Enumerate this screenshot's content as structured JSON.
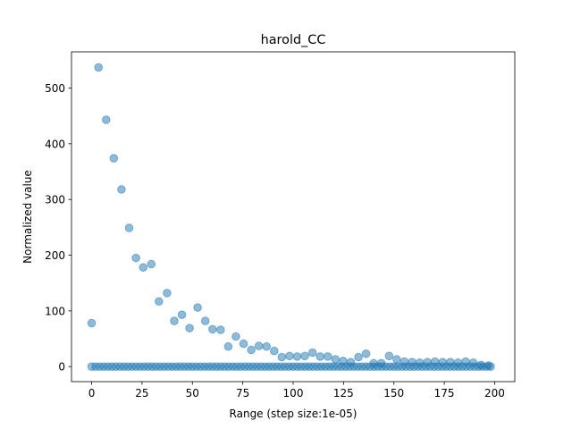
{
  "chart_data": {
    "type": "scatter",
    "title": "harold_CC",
    "xlabel": "Range (step size:1e-05)",
    "ylabel": "Normalized value",
    "xlim": [
      -10,
      210
    ],
    "ylim": [
      -27,
      565
    ],
    "xticks": [
      0,
      25,
      50,
      75,
      100,
      125,
      150,
      175,
      200
    ],
    "yticks": [
      0,
      100,
      200,
      300,
      400,
      500
    ],
    "grid": false,
    "color": "#1f77b4",
    "series": [
      {
        "x": [
          0,
          3.4,
          7.2,
          11,
          14.8,
          18.6,
          22,
          25.6,
          29.6,
          33.4,
          37.4,
          41,
          44.8,
          48.6,
          52.6,
          56.4,
          60,
          64,
          67.8,
          71.6,
          75.4,
          79.2,
          83,
          86.8,
          90.6,
          94.4,
          98.2,
          102,
          105.8,
          109.6,
          113.4,
          117.2,
          121,
          124.8,
          128.6,
          132.4,
          136.2,
          140,
          143.8,
          147.6,
          151.4,
          155.2,
          159,
          162.8,
          166.6,
          170.4,
          174.2,
          178,
          181.8,
          185.6,
          189.4,
          193.2,
          197
        ],
        "y": [
          78,
          537,
          443,
          374,
          318,
          249,
          195,
          178,
          184,
          117,
          132,
          82,
          93,
          69,
          106,
          82,
          67,
          66,
          36,
          54,
          41,
          30,
          37,
          36,
          28,
          17,
          19,
          18,
          19,
          25,
          18,
          18,
          13,
          10,
          8,
          17,
          23,
          6,
          6,
          19,
          13,
          9,
          8,
          7,
          8,
          9,
          8,
          8,
          7,
          9,
          7,
          3,
          2
        ]
      },
      {
        "x": [
          0,
          2,
          4,
          6,
          8,
          10,
          12,
          14,
          16,
          18,
          20,
          22,
          24,
          26,
          28,
          30,
          32,
          34,
          36,
          38,
          40,
          42,
          44,
          46,
          48,
          50,
          52,
          54,
          56,
          58,
          60,
          62,
          64,
          66,
          68,
          70,
          72,
          74,
          76,
          78,
          80,
          82,
          84,
          86,
          88,
          90,
          92,
          94,
          96,
          98,
          100,
          102,
          104,
          106,
          108,
          110,
          112,
          114,
          116,
          118,
          120,
          122,
          124,
          126,
          128,
          130,
          132,
          134,
          136,
          138,
          140,
          142,
          144,
          146,
          148,
          150,
          152,
          154,
          156,
          158,
          160,
          162,
          164,
          166,
          168,
          170,
          172,
          174,
          176,
          178,
          180,
          182,
          184,
          186,
          188,
          190,
          192,
          194,
          196,
          198
        ],
        "y": [
          0,
          0,
          0,
          0,
          0,
          0,
          0,
          0,
          0,
          0,
          0,
          0,
          0,
          0,
          0,
          0,
          0,
          0,
          0,
          0,
          0,
          0,
          0,
          0,
          0,
          0,
          0,
          0,
          0,
          0,
          0,
          0,
          0,
          0,
          0,
          0,
          0,
          0,
          0,
          0,
          0,
          0,
          0,
          0,
          0,
          0,
          0,
          0,
          0,
          0,
          0,
          0,
          0,
          0,
          0,
          0,
          0,
          0,
          0,
          0,
          0,
          0,
          0,
          0,
          0,
          0,
          0,
          0,
          0,
          0,
          0,
          0,
          0,
          0,
          0,
          0,
          0,
          0,
          0,
          0,
          0,
          0,
          0,
          0,
          0,
          0,
          0,
          0,
          0,
          0,
          0,
          0,
          0,
          0,
          0,
          0,
          0,
          0,
          0,
          0
        ]
      }
    ]
  }
}
